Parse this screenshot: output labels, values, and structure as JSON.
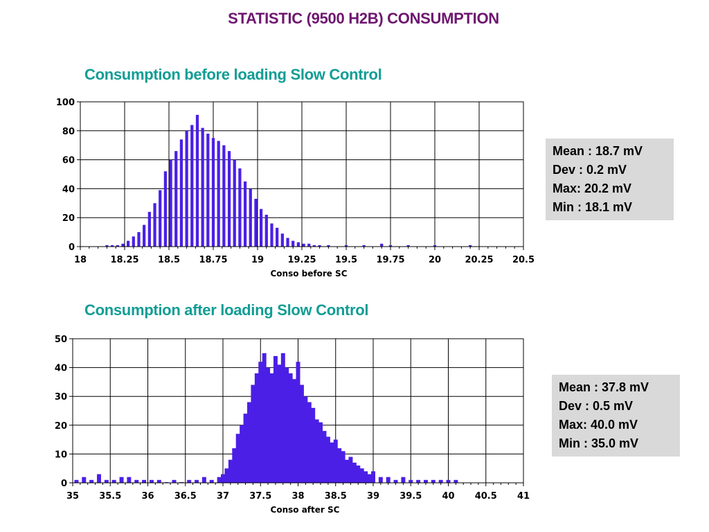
{
  "page_title": "STATISTIC (9500 H2B) CONSUMPTION",
  "colors": {
    "title": "#6e1670",
    "section_title": "#119d95",
    "bars": "#4b1fe6",
    "grid": "#000000",
    "stats_bg": "#d9d9d9"
  },
  "chart_data": [
    {
      "type": "bar",
      "section_title": "Consumption before loading Slow Control",
      "xlabel": "Conso before SC",
      "ylabel": "",
      "xlim": [
        18,
        20.5
      ],
      "ylim": [
        0,
        100
      ],
      "x_ticks": [
        "18",
        "18.25",
        "18.5",
        "18.75",
        "19",
        "19.25",
        "19.5",
        "19.75",
        "20",
        "20.25",
        "20.5"
      ],
      "y_ticks": [
        "0",
        "20",
        "40",
        "60",
        "80",
        "100"
      ],
      "grid": true,
      "x": [
        18.15,
        18.18,
        18.21,
        18.24,
        18.27,
        18.3,
        18.33,
        18.36,
        18.39,
        18.42,
        18.45,
        18.48,
        18.51,
        18.54,
        18.57,
        18.6,
        18.63,
        18.66,
        18.69,
        18.72,
        18.75,
        18.78,
        18.81,
        18.84,
        18.87,
        18.9,
        18.93,
        18.96,
        18.99,
        19.02,
        19.05,
        19.08,
        19.11,
        19.14,
        19.17,
        19.2,
        19.23,
        19.26,
        19.29,
        19.32,
        19.35,
        19.4,
        19.5,
        19.6,
        19.7,
        19.75,
        19.85,
        20.0,
        20.2
      ],
      "values": [
        1,
        1,
        1,
        2,
        4,
        7,
        10,
        15,
        24,
        30,
        39,
        52,
        60,
        66,
        74,
        80,
        84,
        91,
        82,
        78,
        75,
        73,
        70,
        66,
        60,
        54,
        45,
        40,
        33,
        26,
        22,
        16,
        13,
        9,
        6,
        4,
        3,
        2,
        2,
        1,
        1,
        1,
        1,
        1,
        2,
        1,
        1,
        1,
        1
      ],
      "stats": [
        "Mean : 18.7 mV",
        "Dev : 0.2 mV",
        "Max: 20.2 mV",
        "Min : 18.1 mV"
      ]
    },
    {
      "type": "bar",
      "section_title": "Consumption after loading Slow Control",
      "xlabel": "Conso after SC",
      "ylabel": "",
      "xlim": [
        35,
        41
      ],
      "ylim": [
        0,
        50
      ],
      "x_ticks": [
        "35",
        "35.5",
        "36",
        "36.5",
        "37",
        "37.5",
        "38",
        "38.5",
        "39",
        "39.5",
        "40",
        "40.5",
        "41"
      ],
      "y_ticks": [
        "0",
        "10",
        "20",
        "30",
        "40",
        "50"
      ],
      "grid": true,
      "x": [
        35.05,
        35.15,
        35.25,
        35.35,
        35.45,
        35.55,
        35.65,
        35.75,
        35.85,
        35.95,
        36.05,
        36.15,
        36.25,
        36.35,
        36.45,
        36.55,
        36.65,
        36.75,
        36.85,
        36.95,
        37.0,
        37.05,
        37.1,
        37.15,
        37.2,
        37.25,
        37.3,
        37.35,
        37.4,
        37.45,
        37.5,
        37.55,
        37.6,
        37.65,
        37.7,
        37.75,
        37.8,
        37.85,
        37.9,
        37.95,
        38.0,
        38.05,
        38.1,
        38.15,
        38.2,
        38.25,
        38.3,
        38.35,
        38.4,
        38.45,
        38.5,
        38.55,
        38.6,
        38.65,
        38.7,
        38.75,
        38.8,
        38.85,
        38.9,
        38.95,
        39.0,
        39.1,
        39.2,
        39.3,
        39.4,
        39.5,
        39.6,
        39.7,
        39.8,
        39.9,
        40.0,
        40.1
      ],
      "values": [
        1,
        2,
        1,
        3,
        1,
        1,
        2,
        2,
        1,
        1,
        1,
        1,
        0,
        1,
        0,
        1,
        1,
        2,
        1,
        2,
        3,
        5,
        8,
        12,
        17,
        20,
        24,
        28,
        34,
        38,
        42,
        45,
        40,
        38,
        44,
        41,
        45,
        40,
        38,
        36,
        42,
        34,
        30,
        28,
        26,
        22,
        21,
        18,
        16,
        14,
        15,
        12,
        11,
        8,
        9,
        7,
        6,
        5,
        4,
        3,
        4,
        2,
        2,
        1,
        2,
        1,
        1,
        1,
        1,
        1,
        1,
        1
      ],
      "stats": [
        "Mean : 37.8 mV",
        "Dev : 0.5 mV",
        "Max: 40.0 mV",
        "Min : 35.0 mV"
      ]
    }
  ]
}
